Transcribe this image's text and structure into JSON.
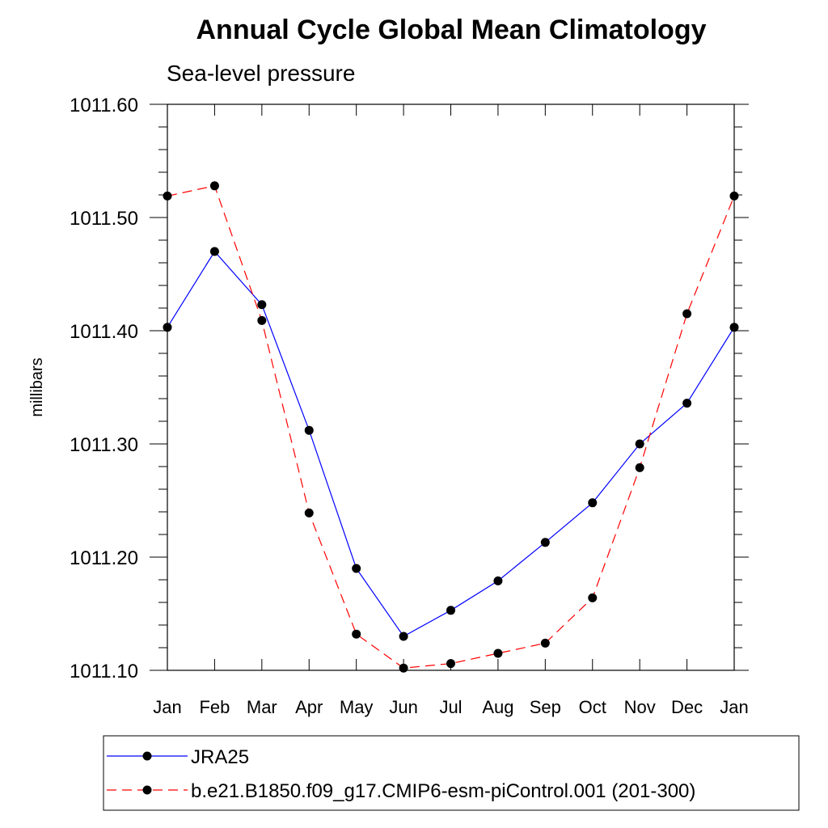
{
  "chart_data": {
    "type": "line",
    "title": "Annual Cycle Global Mean Climatology",
    "subtitle": "Sea-level pressure",
    "ylabel": "millibars",
    "xlabel": "",
    "categories": [
      "Jan",
      "Feb",
      "Mar",
      "Apr",
      "May",
      "Jun",
      "Jul",
      "Aug",
      "Sep",
      "Oct",
      "Nov",
      "Dec",
      "Jan"
    ],
    "ylim": [
      1011.1,
      1011.6
    ],
    "y_ticks": [
      "1011.10",
      "1011.20",
      "1011.30",
      "1011.40",
      "1011.50",
      "1011.60"
    ],
    "grid": false,
    "legend_position": "bottom",
    "series": [
      {
        "name": "JRA25",
        "color": "#0000ff",
        "line_style": "solid",
        "marker": "filled-circle",
        "values": [
          1011.403,
          1011.47,
          1011.423,
          1011.312,
          1011.19,
          1011.13,
          1011.153,
          1011.179,
          1011.213,
          1011.248,
          1011.3,
          1011.336,
          1011.403
        ]
      },
      {
        "name": "b.e21.B1850.f09_g17.CMIP6-esm-piControl.001 (201-300)",
        "color": "#ff0000",
        "line_style": "dashed",
        "marker": "filled-circle",
        "values": [
          1011.519,
          1011.528,
          1011.409,
          1011.239,
          1011.132,
          1011.102,
          1011.106,
          1011.115,
          1011.124,
          1011.164,
          1011.279,
          1011.415,
          1011.519
        ]
      }
    ]
  }
}
